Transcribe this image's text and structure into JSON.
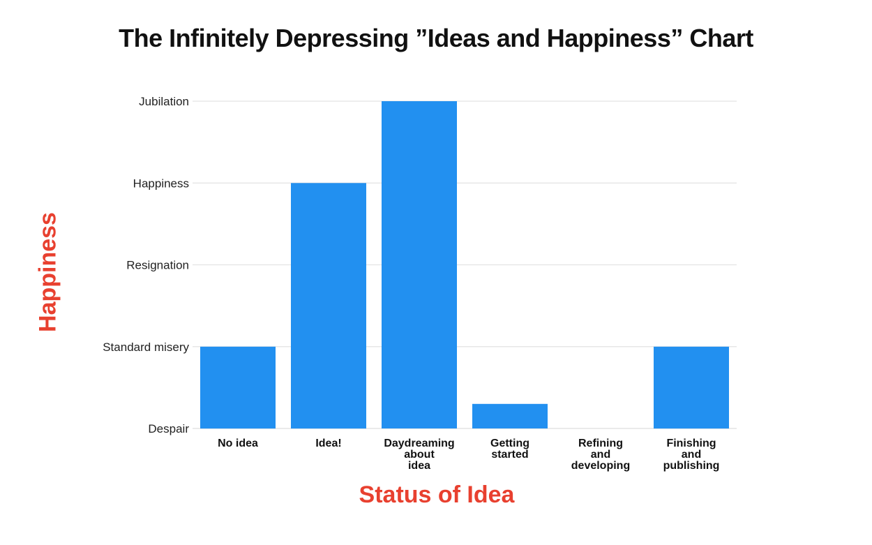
{
  "chart_data": {
    "type": "bar",
    "title": "The Infinitely Depressing ”Ideas and Happiness” Chart",
    "xlabel": "Status of Idea",
    "ylabel": "Happiness",
    "categories": [
      "No idea",
      "Idea!",
      "Daydreaming about idea",
      "Getting started",
      "Refining and developing",
      "Finishing and publishing"
    ],
    "category_lines": [
      [
        "No idea"
      ],
      [
        "Idea!"
      ],
      [
        "Daydreaming",
        "about",
        "idea"
      ],
      [
        "Getting",
        "started"
      ],
      [
        "Refining",
        "and",
        "developing"
      ],
      [
        "Finishing",
        "and",
        "publishing"
      ]
    ],
    "values": [
      1,
      3,
      4,
      0.3,
      0,
      1
    ],
    "y_ticks": [
      {
        "value": 0,
        "label": "Despair"
      },
      {
        "value": 1,
        "label": "Standard misery"
      },
      {
        "value": 2,
        "label": "Resignation"
      },
      {
        "value": 3,
        "label": "Happiness"
      },
      {
        "value": 4,
        "label": "Jubilation"
      }
    ],
    "ylim": [
      0,
      4
    ],
    "grid": true,
    "legend": "none",
    "colors": {
      "bar": "#2290f0",
      "axis_title": "#e8402f",
      "grid": "#e3e3e3"
    }
  }
}
